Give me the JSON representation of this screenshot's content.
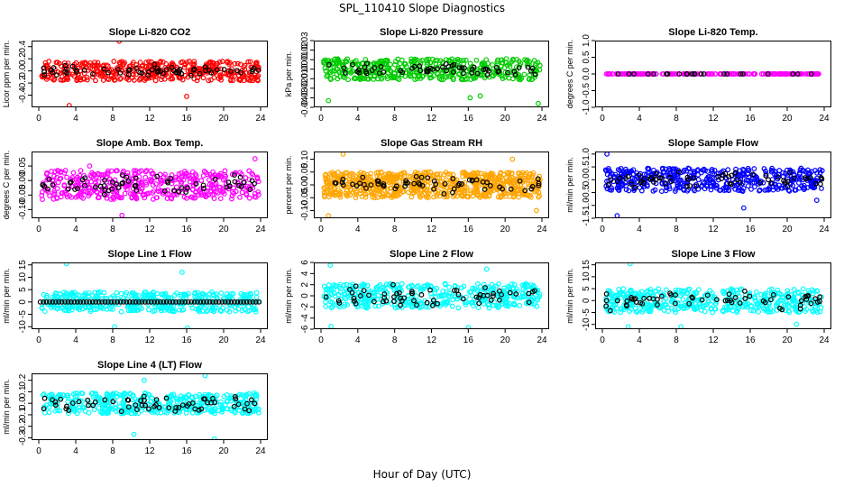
{
  "page": {
    "title": "SPL_110410  Slope Diagnostics",
    "xlabel": "Hour of Day (UTC)"
  },
  "chart_data": [
    {
      "type": "scatter",
      "title": "Slope Li-820 CO2",
      "ylabel": "Licor ppm per min.",
      "xlim": [
        0,
        24
      ],
      "ylim": [
        -0.6,
        0.5
      ],
      "xticks": [
        0,
        4,
        8,
        12,
        16,
        20,
        24
      ],
      "yticks": [
        -0.4,
        -0.2,
        0.0,
        0.2,
        0.4
      ],
      "ytick_labels": [
        "-0.4",
        "-0.2",
        "0.0",
        "0.2",
        "0.4"
      ],
      "series": [
        {
          "color": "#ff0000",
          "n": 420,
          "center": 0.0,
          "spread": 0.16,
          "dist": "uniform",
          "extremes": [
            [
              3.3,
              -0.57
            ],
            [
              8.7,
              0.49
            ],
            [
              16.0,
              -0.42
            ]
          ]
        },
        {
          "color": "#000000",
          "n": 60,
          "center": 0.0,
          "spread": 0.08,
          "dist": "gauss"
        }
      ]
    },
    {
      "type": "scatter",
      "title": "Slope Li-820 Pressure",
      "ylabel": "kPa per min.",
      "xlim": [
        0,
        24
      ],
      "ylim": [
        -0.04,
        0.03
      ],
      "xticks": [
        0,
        4,
        8,
        12,
        16,
        20,
        24
      ],
      "yticks": [
        -0.04,
        -0.03,
        -0.02,
        -0.01,
        0.0,
        0.01,
        0.02,
        0.03
      ],
      "ytick_labels": [
        "-0.04",
        "-0.03",
        "-0.02",
        "-0.01",
        "0.00",
        "0.01",
        "0.02",
        "0.03"
      ],
      "series": [
        {
          "color": "#00cc00",
          "n": 420,
          "center": 0.0,
          "spread": 0.011,
          "dist": "uniform",
          "extremes": [
            [
              0.8,
              -0.033
            ],
            [
              16.2,
              -0.03
            ],
            [
              17.3,
              -0.028
            ],
            [
              23.6,
              -0.036
            ]
          ]
        },
        {
          "color": "#000000",
          "n": 60,
          "center": 0.0,
          "spread": 0.006,
          "dist": "gauss"
        }
      ]
    },
    {
      "type": "scatter",
      "title": "Slope Li-820 Temp.",
      "ylabel": "degrees C per min.",
      "xlim": [
        0,
        24
      ],
      "ylim": [
        -1.0,
        1.0
      ],
      "xticks": [
        0,
        4,
        8,
        12,
        16,
        20,
        24
      ],
      "yticks": [
        -1.0,
        -0.5,
        0.0,
        0.5,
        1.0
      ],
      "ytick_labels": [
        "-1.0",
        "-0.5",
        "0.0",
        "0.5",
        "1.0"
      ],
      "series": [
        {
          "color": "#ff00ff",
          "n": 230,
          "center": 0.0,
          "spread": 0.0,
          "dist": "uniform"
        },
        {
          "color": "#000000",
          "n": 24,
          "center": 0.0,
          "spread": 0.0,
          "dist": "uniform"
        }
      ]
    },
    {
      "type": "scatter",
      "title": "Slope Amb. Box Temp.",
      "ylabel": "degrees C per min.",
      "xlim": [
        0,
        24
      ],
      "ylim": [
        -0.13,
        0.1
      ],
      "xticks": [
        0,
        4,
        8,
        12,
        16,
        20,
        24
      ],
      "yticks": [
        -0.1,
        -0.05,
        0.0,
        0.05
      ],
      "ytick_labels": [
        "-0.10",
        "-0.05",
        "0.00",
        "0.05"
      ],
      "series": [
        {
          "color": "#ff00ff",
          "n": 420,
          "center": -0.015,
          "spread": 0.05,
          "dist": "uniform",
          "extremes": [
            [
              9.0,
              -0.12
            ],
            [
              23.4,
              0.075
            ],
            [
              5.5,
              0.05
            ]
          ]
        },
        {
          "color": "#000000",
          "n": 60,
          "center": -0.015,
          "spread": 0.03,
          "dist": "gauss"
        }
      ]
    },
    {
      "type": "scatter",
      "title": "Slope Gas Stream RH",
      "ylabel": "percent per min.",
      "xlim": [
        0,
        24
      ],
      "ylim": [
        -0.13,
        0.13
      ],
      "xticks": [
        0,
        4,
        8,
        12,
        16,
        20,
        24
      ],
      "yticks": [
        -0.1,
        -0.05,
        0.0,
        0.05,
        0.1
      ],
      "ytick_labels": [
        "-0.10",
        "-0.05",
        "0.00",
        "0.05",
        "0.10"
      ],
      "series": [
        {
          "color": "#ffa500",
          "n": 700,
          "center": 0.0,
          "spread": 0.05,
          "dist": "uniform",
          "extremes": [
            [
              2.4,
              0.12
            ],
            [
              0.8,
              -0.12
            ],
            [
              20.8,
              0.1
            ],
            [
              23.4,
              -0.1
            ]
          ]
        },
        {
          "color": "#000000",
          "n": 60,
          "center": 0.0,
          "spread": 0.03,
          "dist": "gauss"
        }
      ]
    },
    {
      "type": "scatter",
      "title": "Slope Sample Flow",
      "ylabel": "ml/min per min.",
      "xlim": [
        0,
        24
      ],
      "ylim": [
        -1.5,
        1.1
      ],
      "xticks": [
        0,
        4,
        8,
        12,
        16,
        20,
        24
      ],
      "yticks": [
        -1.5,
        -1.0,
        -0.5,
        0.0,
        0.5,
        1.0
      ],
      "ytick_labels": [
        "-1.5",
        "-1.0",
        "-0.5",
        "0.0",
        "0.5",
        "1.0"
      ],
      "series": [
        {
          "color": "#0000ff",
          "n": 450,
          "center": 0.0,
          "spread": 0.45,
          "dist": "uniform",
          "extremes": [
            [
              0.5,
              1.0
            ],
            [
              1.6,
              -1.4
            ],
            [
              15.3,
              -1.1
            ],
            [
              23.2,
              -0.8
            ]
          ]
        },
        {
          "color": "#000000",
          "n": 60,
          "center": 0.0,
          "spread": 0.25,
          "dist": "gauss"
        }
      ]
    },
    {
      "type": "scatter",
      "title": "Slope Line 1 Flow",
      "ylabel": "ml/min per min.",
      "xlim": [
        0,
        24
      ],
      "ylim": [
        -11,
        16
      ],
      "xticks": [
        0,
        4,
        8,
        12,
        16,
        20,
        24
      ],
      "yticks": [
        -10,
        -5,
        0,
        5,
        10,
        15
      ],
      "ytick_labels": [
        "-10",
        "-5",
        "0",
        "5",
        "10",
        "15"
      ],
      "series": [
        {
          "color": "#00ffff",
          "n": 420,
          "center": 0.0,
          "spread": 4.0,
          "dist": "uniform",
          "extremes": [
            [
              3.0,
              15.5
            ],
            [
              8.2,
              -10.0
            ],
            [
              16.1,
              -10.5
            ],
            [
              15.5,
              12.0
            ]
          ]
        },
        {
          "color": "#000000",
          "n": 72,
          "center": 0.0,
          "spread": 0.0,
          "dist": "line"
        }
      ]
    },
    {
      "type": "scatter",
      "title": "Slope Line 2 Flow",
      "ylabel": "ml/min per min.",
      "xlim": [
        0,
        24
      ],
      "ylim": [
        -6,
        6
      ],
      "xticks": [
        0,
        4,
        8,
        12,
        16,
        20,
        24
      ],
      "yticks": [
        -6,
        -4,
        -2,
        0,
        2,
        4,
        6
      ],
      "ytick_labels": [
        "-6",
        "-4",
        "-2",
        "0",
        "2",
        "4",
        "6"
      ],
      "series": [
        {
          "color": "#00ffff",
          "n": 420,
          "center": 0.0,
          "spread": 2.2,
          "dist": "uniform",
          "extremes": [
            [
              1.0,
              5.5
            ],
            [
              16.0,
              -5.7
            ],
            [
              1.1,
              -5.5
            ],
            [
              18.0,
              4.8
            ]
          ]
        },
        {
          "color": "#000000",
          "n": 60,
          "center": 0.0,
          "spread": 1.6,
          "dist": "gauss"
        }
      ]
    },
    {
      "type": "scatter",
      "title": "Slope Line 3 Flow",
      "ylabel": "ml/min per min.",
      "xlim": [
        0,
        24
      ],
      "ylim": [
        -12,
        16
      ],
      "xticks": [
        0,
        4,
        8,
        12,
        16,
        20,
        24
      ],
      "yticks": [
        -10,
        -5,
        0,
        5,
        10,
        15
      ],
      "ytick_labels": [
        "-10",
        "-5",
        "0",
        "5",
        "10",
        "15"
      ],
      "series": [
        {
          "color": "#00ffff",
          "n": 420,
          "center": 0.0,
          "spread": 5.0,
          "dist": "uniform",
          "extremes": [
            [
              3.0,
              15.5
            ],
            [
              2.8,
              -11.0
            ],
            [
              8.5,
              -11.0
            ],
            [
              21.0,
              -10.0
            ]
          ]
        },
        {
          "color": "#000000",
          "n": 60,
          "center": 0.0,
          "spread": 3.0,
          "dist": "gauss"
        }
      ]
    },
    {
      "type": "scatter",
      "title": "Slope Line 4 (LT) Flow",
      "ylabel": "ml/min per min.",
      "xlim": [
        0,
        24
      ],
      "ylim": [
        -0.32,
        0.26
      ],
      "xticks": [
        0,
        4,
        8,
        12,
        16,
        20,
        24
      ],
      "yticks": [
        -0.3,
        -0.2,
        -0.1,
        0.0,
        0.1,
        0.2
      ],
      "ytick_labels": [
        "-0.3",
        "-0.2",
        "-0.1",
        "0.0",
        "0.1",
        "0.2"
      ],
      "series": [
        {
          "color": "#00ffff",
          "n": 420,
          "center": 0.0,
          "spread": 0.09,
          "dist": "uniform",
          "extremes": [
            [
              10.3,
              -0.27
            ],
            [
              19.0,
              -0.31
            ],
            [
              18.0,
              0.24
            ],
            [
              11.4,
              0.2
            ]
          ]
        },
        {
          "color": "#000000",
          "n": 60,
          "center": 0.0,
          "spread": 0.07,
          "dist": "gauss"
        }
      ]
    }
  ]
}
